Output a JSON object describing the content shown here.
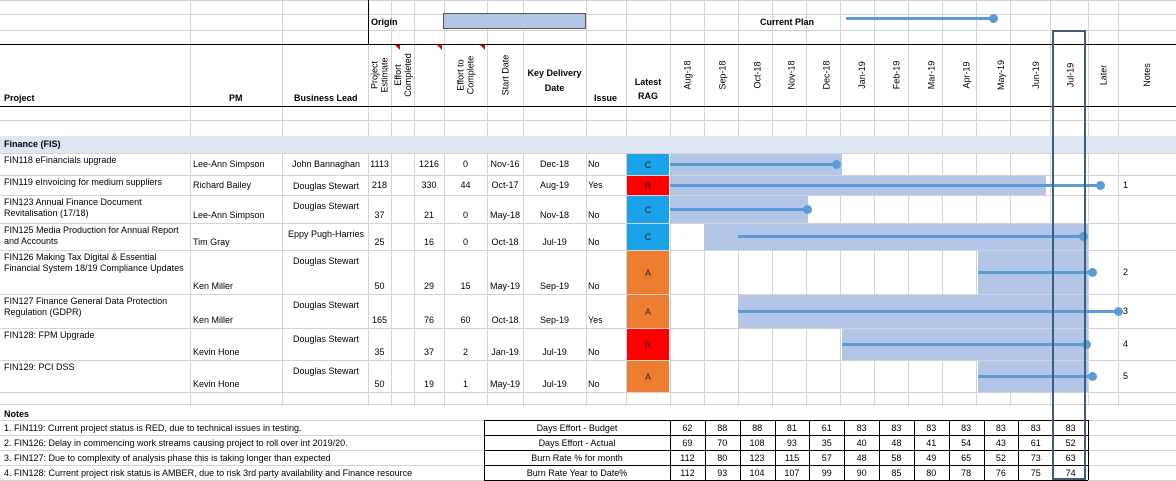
{
  "legend": {
    "origin_label": "Origin",
    "current_plan_label": "Current Plan"
  },
  "headers": {
    "project": "Project",
    "pm": "PM",
    "business_lead": "Business Lead",
    "project_estimate": "Project Estimate",
    "effort_completed": "Effort Completed",
    "effort_to_complete": "Effort to Complete",
    "start_date": "Start Date",
    "key_delivery_date": "Key Delivery Date",
    "issue": "Issue",
    "latest_rag": "Latest RAG",
    "months": [
      "Aug-18",
      "Sep-18",
      "Oct-18",
      "Nov-18",
      "Dec-18",
      "Jan-19",
      "Feb-19",
      "Mar-19",
      "Apr-19",
      "May-19",
      "Jun-19",
      "Jul-19"
    ],
    "later": "Later",
    "notes": "Notes"
  },
  "section_title": "Finance (FIS)",
  "projects": [
    {
      "name": "FIN118 eFinancials upgrade",
      "pm": "Lee-Ann Simpson",
      "lead": "John Bannaghan",
      "estimate": "1113",
      "completed": "1216",
      "to_complete": "0",
      "start": "Nov-16",
      "delivery": "Dec-18",
      "issue": "No",
      "rag": "C",
      "rag_color": "#1aa3e8",
      "note": ""
    },
    {
      "name": "FIN119 eInvoicing for medium suppliers",
      "pm": "Richard Bailey",
      "lead": "Douglas Stewart",
      "estimate": "218",
      "completed": "330",
      "to_complete": "44",
      "start": "Oct-17",
      "delivery": "Aug-19",
      "issue": "Yes",
      "rag": "R",
      "rag_color": "#ff0000",
      "note": "1"
    },
    {
      "name": "FIN123 Annual Finance Document Revitalisation (17/18)",
      "pm": "Lee-Ann Simpson",
      "lead": "Douglas Stewart",
      "estimate": "37",
      "completed": "21",
      "to_complete": "0",
      "start": "May-18",
      "delivery": "Nov-18",
      "issue": "No",
      "rag": "C",
      "rag_color": "#1aa3e8",
      "note": ""
    },
    {
      "name": "FIN125 Media Production for Annual Report and Accounts",
      "pm": "Tim Gray",
      "lead": "Eppy Pugh-Harries",
      "estimate": "25",
      "completed": "16",
      "to_complete": "0",
      "start": "Oct-18",
      "delivery": "Jul-19",
      "issue": "No",
      "rag": "C",
      "rag_color": "#1aa3e8",
      "note": ""
    },
    {
      "name": "FIN126 Making Tax Digital & Essential Financial System 18/19 Compliance Updates",
      "pm": "Ken Miller",
      "lead": "Douglas Stewart",
      "estimate": "50",
      "completed": "29",
      "to_complete": "15",
      "start": "May-19",
      "delivery": "Sep-19",
      "issue": "No",
      "rag": "A",
      "rag_color": "#ed7d31",
      "note": "2"
    },
    {
      "name": "FIN127 Finance General Data Protection Regulation (GDPR)",
      "pm": "Ken Miller",
      "lead": "Douglas Stewart",
      "estimate": "165",
      "completed": "76",
      "to_complete": "60",
      "start": "Oct-18",
      "delivery": "Sep-19",
      "issue": "Yes",
      "rag": "A",
      "rag_color": "#ed7d31",
      "note": "3"
    },
    {
      "name": "FIN128: FPM Upgrade",
      "pm": "Kevin Hone",
      "lead": "Douglas Stewart",
      "estimate": "35",
      "completed": "37",
      "to_complete": "2",
      "start": "Jan-19",
      "delivery": "Jul-19",
      "issue": "No",
      "rag": "R",
      "rag_color": "#ff0000",
      "note": "4"
    },
    {
      "name": "FIN129: PCI DSS",
      "pm": "Kevin Hone",
      "lead": "Douglas Stewart",
      "estimate": "50",
      "completed": "19",
      "to_complete": "1",
      "start": "May-19",
      "delivery": "Jul-19",
      "issue": "No",
      "rag": "A",
      "rag_color": "#ed7d31",
      "note": "5"
    }
  ],
  "notes_title": "Notes",
  "notes": [
    "1. FIN119: Current project status is RED, due to technical issues in testing.",
    "2. FIN126: Delay in commencing work streams causing project to roll over int 2019/20.",
    "3. FIN127: Due to complexity of analysis phase this is taking longer than expected",
    "4. FIN128:  Current project risk status is AMBER, due to risk 3rd party availability and Finance resource"
  ],
  "summary": [
    {
      "label": "Days Effort - Budget",
      "values": [
        "62",
        "88",
        "88",
        "81",
        "61",
        "83",
        "83",
        "83",
        "83",
        "83",
        "83",
        "83"
      ]
    },
    {
      "label": "Days Effort - Actual",
      "values": [
        "69",
        "70",
        "108",
        "93",
        "35",
        "40",
        "48",
        "41",
        "54",
        "43",
        "61",
        "52"
      ]
    },
    {
      "label": "Burn Rate % for month",
      "values": [
        "112",
        "80",
        "123",
        "115",
        "57",
        "48",
        "58",
        "49",
        "65",
        "52",
        "73",
        "63"
      ]
    },
    {
      "label": "Burn Rate Year to Date%",
      "values": [
        "112",
        "93",
        "104",
        "107",
        "99",
        "90",
        "85",
        "80",
        "78",
        "76",
        "75",
        "74"
      ]
    }
  ],
  "colors": {
    "origin_bar": "#b4c6e7",
    "plan_line": "#5b9bd5",
    "section_band": "#dde6f3",
    "current_month_frame": "#3b5f78"
  }
}
